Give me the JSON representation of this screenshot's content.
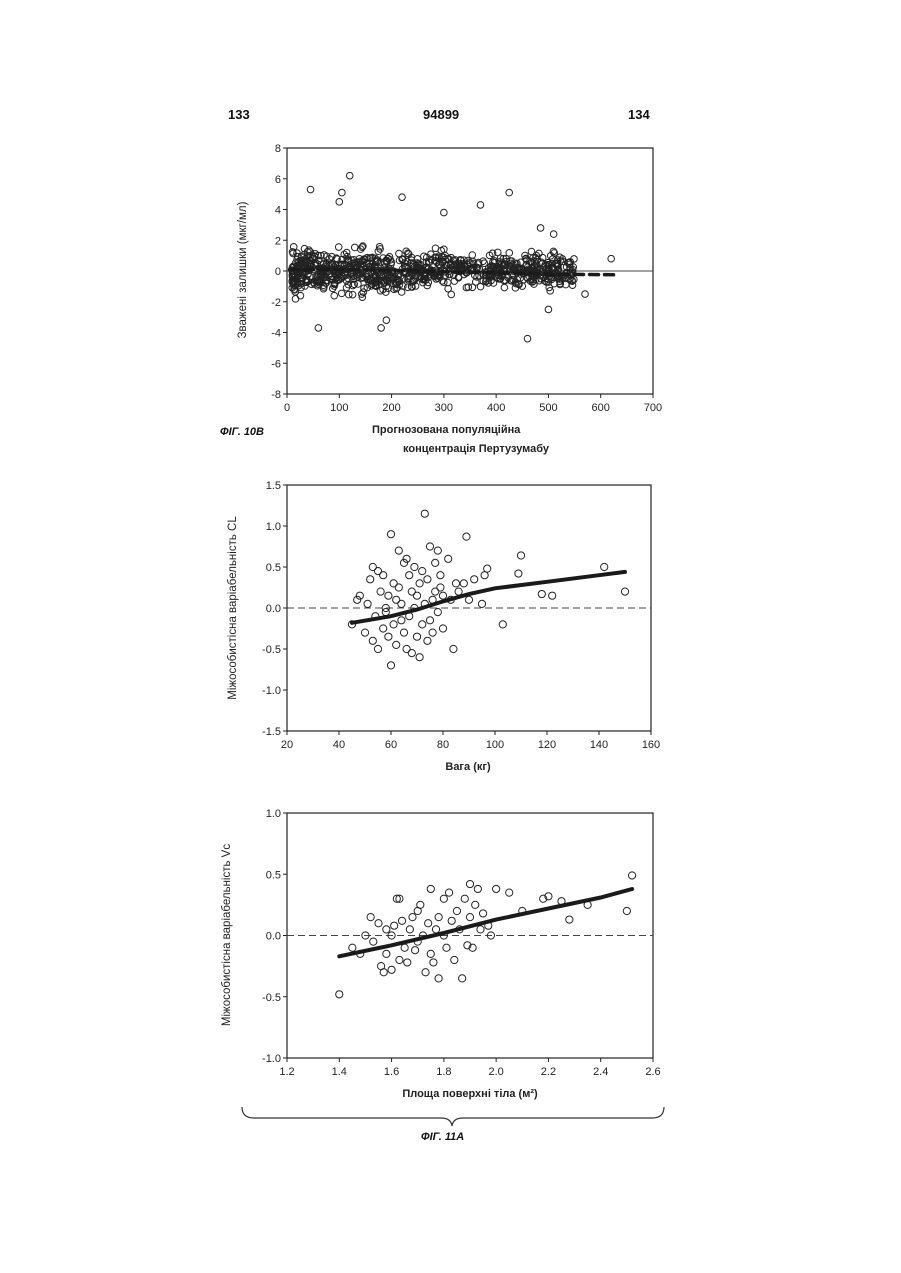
{
  "header": {
    "left_page": "133",
    "doc_number": "94899",
    "right_page": "134"
  },
  "fig_labels": {
    "fig10b": "ФІГ. 10В",
    "fig11a": "ФІГ. 11А"
  },
  "chart_data": [
    {
      "type": "scatter",
      "title": "",
      "xlabel_line1": "Прогнозована популяційна",
      "xlabel_line2": "концентрація Пертузумабу",
      "ylabel": "Зважені залишки (мкг/мл)",
      "xlim": [
        0,
        700
      ],
      "ylim": [
        -8,
        8
      ],
      "xticks": [
        "0",
        "100",
        "200",
        "300",
        "400",
        "500",
        "600",
        "700"
      ],
      "yticks": [
        "-8",
        "-6",
        "-4",
        "-2",
        "0",
        "2",
        "4",
        "6",
        "8"
      ],
      "zero_line": true,
      "trend_style": "dashed",
      "trend": [
        [
          5,
          0.1
        ],
        [
          100,
          0.1
        ],
        [
          200,
          0.05
        ],
        [
          300,
          -0.05
        ],
        [
          400,
          -0.1
        ],
        [
          500,
          -0.2
        ],
        [
          630,
          -0.25
        ]
      ],
      "outliers": [
        [
          45,
          5.3
        ],
        [
          100,
          4.5
        ],
        [
          105,
          5.1
        ],
        [
          120,
          6.2
        ],
        [
          220,
          4.8
        ],
        [
          300,
          3.8
        ],
        [
          370,
          4.3
        ],
        [
          425,
          5.1
        ],
        [
          460,
          -4.4
        ],
        [
          60,
          -3.7
        ],
        [
          180,
          -3.7
        ],
        [
          190,
          -3.2
        ],
        [
          620,
          0.8
        ],
        [
          570,
          -1.5
        ],
        [
          500,
          -2.5
        ],
        [
          485,
          2.8
        ],
        [
          510,
          2.4
        ]
      ],
      "bulk_note": "dense band of roughly 900 residual points between about -2.5 and 2.5"
    },
    {
      "type": "scatter",
      "title": "",
      "xlabel": "Вага (кг)",
      "ylabel": "Міжособистісна варіабельність CL",
      "xlim": [
        20,
        160
      ],
      "ylim": [
        -1.5,
        1.5
      ],
      "xticks": [
        "20",
        "40",
        "60",
        "80",
        "100",
        "120",
        "140",
        "160"
      ],
      "yticks": [
        "-1.5",
        "-1.0",
        "-0.5",
        "0.0",
        "0.5",
        "1.0",
        "1.5"
      ],
      "zero_line": true,
      "trend_style": "solid",
      "trend": [
        [
          45,
          -0.18
        ],
        [
          60,
          -0.1
        ],
        [
          70,
          -0.02
        ],
        [
          80,
          0.08
        ],
        [
          90,
          0.17
        ],
        [
          100,
          0.24
        ],
        [
          120,
          0.32
        ],
        [
          140,
          0.4
        ],
        [
          150,
          0.44
        ]
      ],
      "points": [
        [
          45,
          -0.2
        ],
        [
          47,
          0.1
        ],
        [
          48,
          0.15
        ],
        [
          50,
          -0.3
        ],
        [
          51,
          0.05
        ],
        [
          52,
          0.35
        ],
        [
          53,
          -0.4
        ],
        [
          53,
          0.5
        ],
        [
          54,
          -0.1
        ],
        [
          55,
          0.45
        ],
        [
          55,
          -0.5
        ],
        [
          56,
          0.2
        ],
        [
          57,
          -0.25
        ],
        [
          57,
          0.4
        ],
        [
          58,
          -0.05
        ],
        [
          58,
          0.0
        ],
        [
          59,
          -0.35
        ],
        [
          59,
          0.15
        ],
        [
          60,
          0.9
        ],
        [
          60,
          -0.7
        ],
        [
          61,
          -0.2
        ],
        [
          61,
          0.3
        ],
        [
          62,
          0.1
        ],
        [
          62,
          -0.45
        ],
        [
          63,
          0.7
        ],
        [
          63,
          0.25
        ],
        [
          64,
          -0.15
        ],
        [
          64,
          0.05
        ],
        [
          65,
          0.55
        ],
        [
          65,
          -0.3
        ],
        [
          66,
          0.6
        ],
        [
          66,
          -0.5
        ],
        [
          67,
          0.4
        ],
        [
          67,
          -0.1
        ],
        [
          68,
          0.2
        ],
        [
          68,
          -0.55
        ],
        [
          69,
          0.0
        ],
        [
          69,
          0.5
        ],
        [
          70,
          -0.35
        ],
        [
          70,
          0.15
        ],
        [
          71,
          -0.6
        ],
        [
          71,
          0.3
        ],
        [
          72,
          -0.2
        ],
        [
          72,
          0.45
        ],
        [
          73,
          1.15
        ],
        [
          73,
          0.05
        ],
        [
          74,
          -0.4
        ],
        [
          74,
          0.35
        ],
        [
          75,
          0.75
        ],
        [
          75,
          -0.15
        ],
        [
          76,
          0.1
        ],
        [
          76,
          -0.3
        ],
        [
          77,
          0.55
        ],
        [
          77,
          0.2
        ],
        [
          78,
          0.7
        ],
        [
          78,
          -0.05
        ],
        [
          79,
          0.25
        ],
        [
          79,
          0.4
        ],
        [
          80,
          0.15
        ],
        [
          80,
          -0.25
        ],
        [
          82,
          0.6
        ],
        [
          83,
          0.1
        ],
        [
          84,
          -0.5
        ],
        [
          85,
          0.3
        ],
        [
          86,
          0.2
        ],
        [
          88,
          0.3
        ],
        [
          89,
          0.87
        ],
        [
          90,
          0.1
        ],
        [
          92,
          0.35
        ],
        [
          95,
          0.05
        ],
        [
          96,
          0.4
        ],
        [
          97,
          0.48
        ],
        [
          103,
          -0.2
        ],
        [
          109,
          0.42
        ],
        [
          110,
          0.64
        ],
        [
          118,
          0.17
        ],
        [
          122,
          0.15
        ],
        [
          142,
          0.5
        ],
        [
          150,
          0.2
        ]
      ]
    },
    {
      "type": "scatter",
      "title": "",
      "xlabel": "Площа поверхні тіла (м²)",
      "ylabel": "Міжособистісна варіабельність Vc",
      "xlim": [
        1.2,
        2.6
      ],
      "ylim": [
        -1.0,
        1.0
      ],
      "xticks": [
        "1.2",
        "1.4",
        "1.6",
        "1.8",
        "2.0",
        "2.2",
        "2.4",
        "2.6"
      ],
      "yticks": [
        "-1.0",
        "-0.5",
        "0.0",
        "0.5",
        "1.0"
      ],
      "zero_line": true,
      "trend_style": "solid",
      "trend": [
        [
          1.4,
          -0.17
        ],
        [
          1.6,
          -0.08
        ],
        [
          1.8,
          0.02
        ],
        [
          2.0,
          0.13
        ],
        [
          2.2,
          0.22
        ],
        [
          2.4,
          0.31
        ],
        [
          2.52,
          0.38
        ]
      ],
      "points": [
        [
          1.4,
          -0.48
        ],
        [
          1.45,
          -0.1
        ],
        [
          1.48,
          -0.15
        ],
        [
          1.5,
          0.0
        ],
        [
          1.52,
          0.15
        ],
        [
          1.53,
          -0.05
        ],
        [
          1.55,
          0.1
        ],
        [
          1.56,
          -0.25
        ],
        [
          1.57,
          -0.3
        ],
        [
          1.58,
          0.05
        ],
        [
          1.58,
          -0.15
        ],
        [
          1.6,
          0.0
        ],
        [
          1.6,
          -0.28
        ],
        [
          1.61,
          0.08
        ],
        [
          1.62,
          0.3
        ],
        [
          1.63,
          -0.2
        ],
        [
          1.63,
          0.3
        ],
        [
          1.64,
          0.12
        ],
        [
          1.65,
          -0.1
        ],
        [
          1.66,
          -0.22
        ],
        [
          1.67,
          0.05
        ],
        [
          1.68,
          0.15
        ],
        [
          1.69,
          -0.12
        ],
        [
          1.7,
          0.2
        ],
        [
          1.7,
          -0.05
        ],
        [
          1.71,
          0.25
        ],
        [
          1.72,
          0.0
        ],
        [
          1.73,
          -0.3
        ],
        [
          1.74,
          0.1
        ],
        [
          1.75,
          0.38
        ],
        [
          1.75,
          -0.15
        ],
        [
          1.76,
          -0.22
        ],
        [
          1.77,
          0.05
        ],
        [
          1.78,
          0.15
        ],
        [
          1.78,
          -0.35
        ],
        [
          1.8,
          0.3
        ],
        [
          1.8,
          0.0
        ],
        [
          1.81,
          -0.1
        ],
        [
          1.82,
          0.35
        ],
        [
          1.83,
          0.12
        ],
        [
          1.84,
          -0.2
        ],
        [
          1.85,
          0.2
        ],
        [
          1.86,
          0.05
        ],
        [
          1.87,
          -0.35
        ],
        [
          1.88,
          0.3
        ],
        [
          1.89,
          -0.08
        ],
        [
          1.9,
          0.42
        ],
        [
          1.9,
          0.15
        ],
        [
          1.91,
          -0.1
        ],
        [
          1.92,
          0.25
        ],
        [
          1.93,
          0.38
        ],
        [
          1.94,
          0.05
        ],
        [
          1.95,
          0.18
        ],
        [
          1.97,
          0.08
        ],
        [
          1.98,
          0.0
        ],
        [
          2.0,
          0.38
        ],
        [
          2.05,
          0.35
        ],
        [
          2.1,
          0.2
        ],
        [
          2.18,
          0.3
        ],
        [
          2.2,
          0.32
        ],
        [
          2.25,
          0.28
        ],
        [
          2.28,
          0.13
        ],
        [
          2.35,
          0.25
        ],
        [
          2.5,
          0.2
        ],
        [
          2.52,
          0.49
        ]
      ]
    }
  ]
}
